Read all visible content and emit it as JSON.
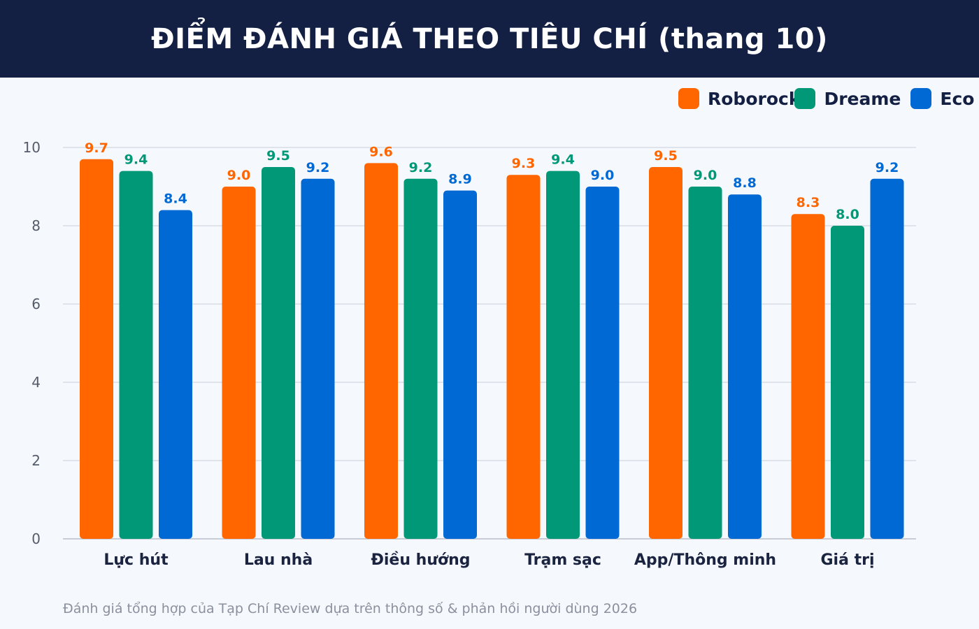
{
  "colors": {
    "Roborock": "#ff6600",
    "Dreame": "#009877",
    "Eco": "#0069d4",
    "header_bg": "#131f43",
    "axis_text": "#555c6a",
    "category_text": "#1a2340",
    "grid": "#d8dde6"
  },
  "chart_data": {
    "type": "bar",
    "title": "ĐIỂM ĐÁNH GIÁ THEO TIÊU CHÍ (thang 10)",
    "categories": [
      "Lực hút",
      "Lau nhà",
      "Điều hướng",
      "Trạm sạc",
      "App/Thông minh",
      "Giá trị"
    ],
    "series": [
      {
        "name": "Roborock",
        "values": [
          9.7,
          9.0,
          9.6,
          9.3,
          9.5,
          8.3
        ]
      },
      {
        "name": "Dreame",
        "values": [
          9.4,
          9.5,
          9.2,
          9.4,
          9.0,
          8.0
        ]
      },
      {
        "name": "Eco",
        "values": [
          8.4,
          9.2,
          8.9,
          9.0,
          8.8,
          9.2
        ]
      }
    ],
    "value_labels": [
      [
        "9.7",
        "9.0",
        "9.6",
        "9.3",
        "9.5",
        "8.3"
      ],
      [
        "9.4",
        "9.5",
        "9.2",
        "9.4",
        "9.0",
        "8.0"
      ],
      [
        "8.4",
        "9.2",
        "8.9",
        "9.0",
        "8.8",
        "9.2"
      ]
    ],
    "ylim": [
      0,
      10
    ],
    "yticks": [
      0,
      2,
      4,
      6,
      8,
      10
    ],
    "ytick_labels": [
      "0",
      "2",
      "4",
      "6",
      "8",
      "10"
    ],
    "grid": true,
    "legend_position": "top-right",
    "xlabel": "",
    "ylabel": ""
  },
  "footnote": "Đánh giá tổng hợp của Tạp Chí Review dựa trên thông số & phản hồi người dùng 2026"
}
